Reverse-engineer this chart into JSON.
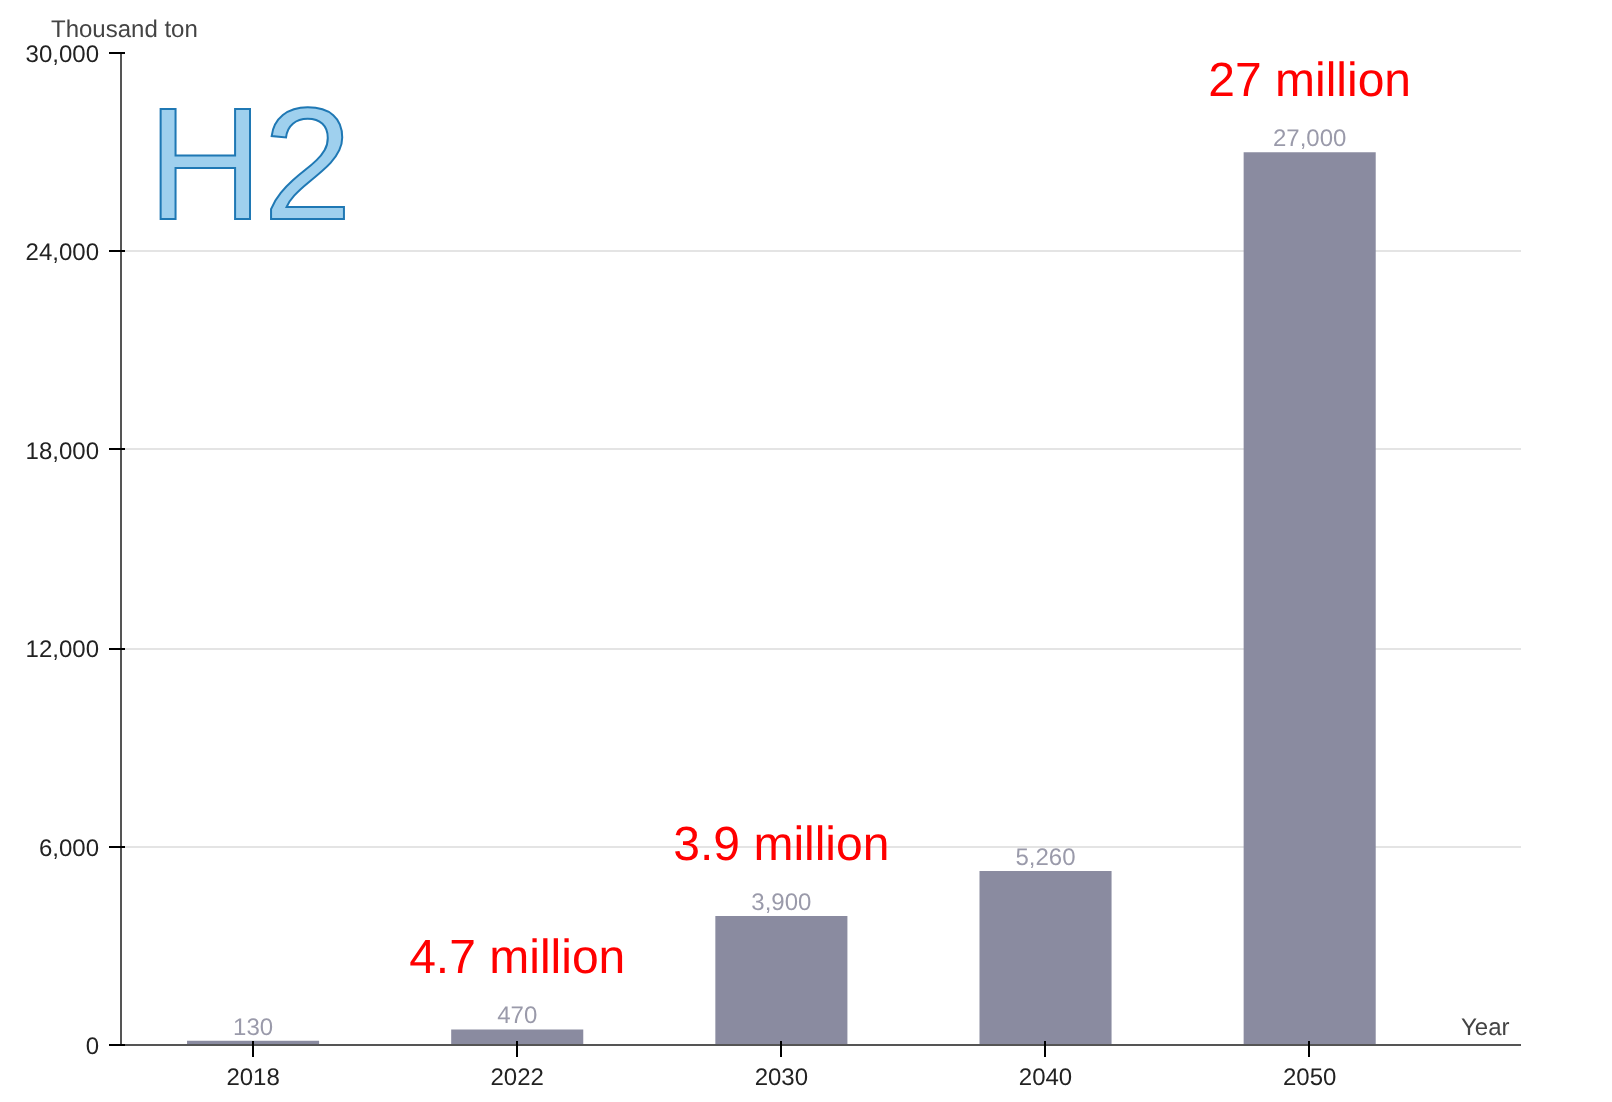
{
  "chart_data": {
    "type": "bar",
    "ylabel": "Thousand ton",
    "xlabel": "Year",
    "categories": [
      "2018",
      "2022",
      "2030",
      "2040",
      "2050"
    ],
    "values": [
      130,
      470,
      3900,
      5260,
      27000
    ],
    "color": "#8a8ba0",
    "value_labels": [
      "130",
      "470",
      "3,900",
      "5,260",
      "27,000"
    ],
    "ylim": [
      0,
      30000
    ],
    "yticks": [
      {
        "value": 0,
        "label": "0"
      },
      {
        "value": 6000,
        "label": "6,000"
      },
      {
        "value": 12000,
        "label": "12,000"
      },
      {
        "value": 18000,
        "label": "18,000"
      },
      {
        "value": 24000,
        "label": "24,000"
      },
      {
        "value": 30000,
        "label": "30,000"
      }
    ],
    "grid": "y",
    "annotations": [
      "H2",
      {
        "text": "4.7 million",
        "x": "2022",
        "y": 470
      },
      {
        "text": "3.9 million",
        "x": "2030",
        "y": 3900
      },
      {
        "text": "27 million",
        "x": "2050",
        "y": 27000
      }
    ]
  }
}
